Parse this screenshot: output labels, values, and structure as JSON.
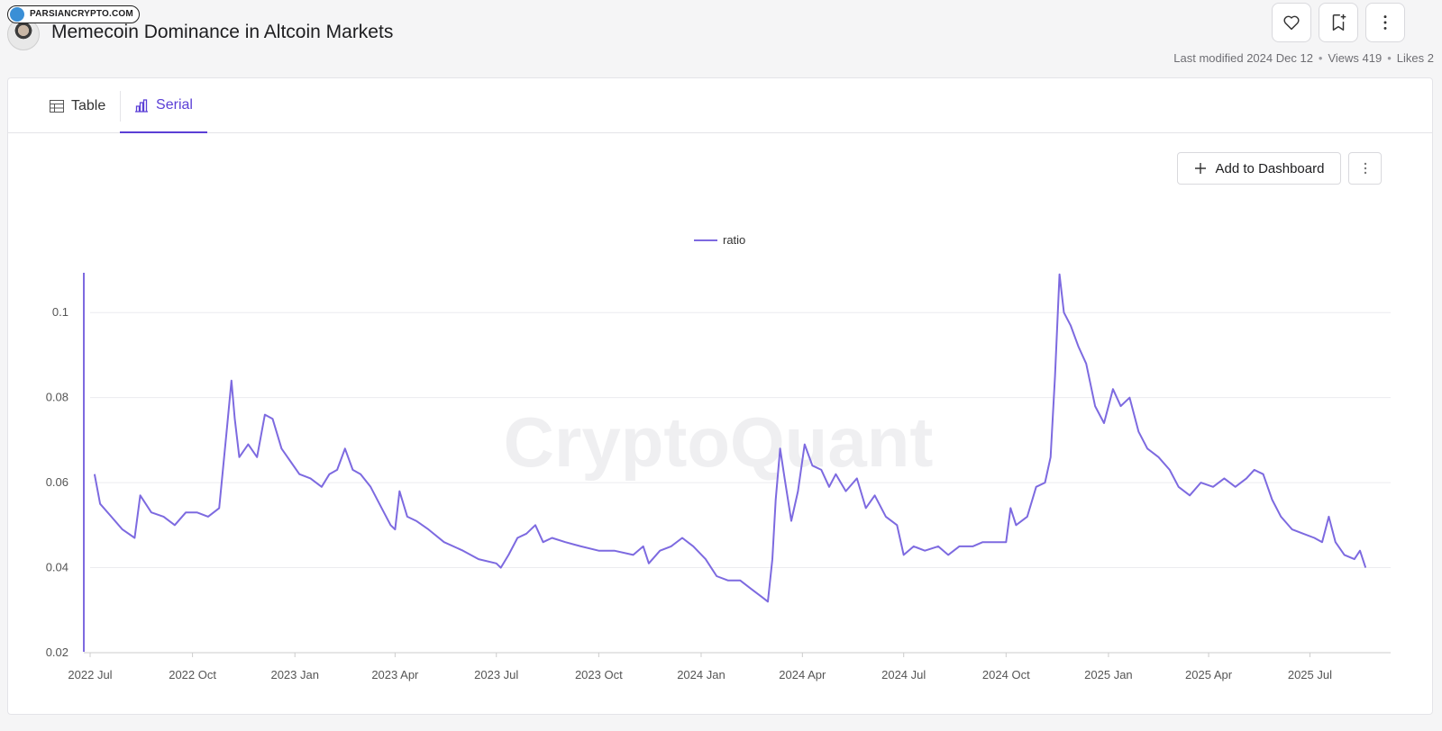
{
  "header": {
    "title": "Memecoin Dominance in Altcoin Markets",
    "badge": "PARSIANCRYPTO.COM",
    "meta": {
      "modified": "Last modified 2024 Dec 12",
      "views": "Views 419",
      "likes": "Likes 2"
    }
  },
  "tabs": [
    {
      "label": "Table",
      "icon": "table-icon"
    },
    {
      "label": "Serial",
      "icon": "bar-chart-icon"
    }
  ],
  "toolbar": {
    "add_dashboard": "Add to Dashboard"
  },
  "colors": {
    "accent": "#5b3fd6",
    "line": "#7d6ae0"
  },
  "chart_data": {
    "type": "line",
    "watermark": "CryptoQuant",
    "legend": "top-center",
    "grid": true,
    "ylim": [
      0.02,
      0.11
    ],
    "yticks": [
      "0.02",
      "0.04",
      "0.06",
      "0.08",
      "0.1"
    ],
    "xticks": [
      "2022 Jul",
      "2022 Oct",
      "2023 Jan",
      "2023 Apr",
      "2023 Jul",
      "2023 Oct",
      "2024 Jan",
      "2024 Apr",
      "2024 Jul",
      "2024 Oct",
      "2025 Jan",
      "2025 Apr",
      "2025 Jul"
    ],
    "series": [
      {
        "name": "ratio",
        "points": [
          [
            "2022-07-05",
            0.062
          ],
          [
            "2022-07-10",
            0.055
          ],
          [
            "2022-07-20",
            0.052
          ],
          [
            "2022-07-30",
            0.049
          ],
          [
            "2022-08-10",
            0.047
          ],
          [
            "2022-08-15",
            0.057
          ],
          [
            "2022-08-25",
            0.053
          ],
          [
            "2022-09-05",
            0.052
          ],
          [
            "2022-09-15",
            0.05
          ],
          [
            "2022-09-25",
            0.053
          ],
          [
            "2022-10-05",
            0.053
          ],
          [
            "2022-10-15",
            0.052
          ],
          [
            "2022-10-25",
            0.054
          ],
          [
            "2022-11-01",
            0.073
          ],
          [
            "2022-11-05",
            0.084
          ],
          [
            "2022-11-08",
            0.075
          ],
          [
            "2022-11-12",
            0.066
          ],
          [
            "2022-11-20",
            0.069
          ],
          [
            "2022-11-28",
            0.066
          ],
          [
            "2022-12-05",
            0.076
          ],
          [
            "2022-12-12",
            0.075
          ],
          [
            "2022-12-20",
            0.068
          ],
          [
            "2022-12-28",
            0.065
          ],
          [
            "2023-01-05",
            0.062
          ],
          [
            "2023-01-15",
            0.061
          ],
          [
            "2023-01-25",
            0.059
          ],
          [
            "2023-02-01",
            0.062
          ],
          [
            "2023-02-08",
            0.063
          ],
          [
            "2023-02-15",
            0.068
          ],
          [
            "2023-02-22",
            0.063
          ],
          [
            "2023-03-01",
            0.062
          ],
          [
            "2023-03-10",
            0.059
          ],
          [
            "2023-03-20",
            0.054
          ],
          [
            "2023-03-28",
            0.05
          ],
          [
            "2023-04-01",
            0.049
          ],
          [
            "2023-04-05",
            0.058
          ],
          [
            "2023-04-12",
            0.052
          ],
          [
            "2023-04-20",
            0.051
          ],
          [
            "2023-05-01",
            0.049
          ],
          [
            "2023-05-15",
            0.046
          ],
          [
            "2023-06-01",
            0.044
          ],
          [
            "2023-06-15",
            0.042
          ],
          [
            "2023-07-01",
            0.041
          ],
          [
            "2023-07-05",
            0.04
          ],
          [
            "2023-07-12",
            0.043
          ],
          [
            "2023-07-20",
            0.047
          ],
          [
            "2023-07-28",
            0.048
          ],
          [
            "2023-08-05",
            0.05
          ],
          [
            "2023-08-12",
            0.046
          ],
          [
            "2023-08-20",
            0.047
          ],
          [
            "2023-09-01",
            0.046
          ],
          [
            "2023-09-15",
            0.045
          ],
          [
            "2023-10-01",
            0.044
          ],
          [
            "2023-10-15",
            0.044
          ],
          [
            "2023-11-01",
            0.043
          ],
          [
            "2023-11-10",
            0.045
          ],
          [
            "2023-11-15",
            0.041
          ],
          [
            "2023-11-25",
            0.044
          ],
          [
            "2023-12-05",
            0.045
          ],
          [
            "2023-12-15",
            0.047
          ],
          [
            "2023-12-25",
            0.045
          ],
          [
            "2024-01-05",
            0.042
          ],
          [
            "2024-01-15",
            0.038
          ],
          [
            "2024-01-25",
            0.037
          ],
          [
            "2024-02-05",
            0.037
          ],
          [
            "2024-02-15",
            0.035
          ],
          [
            "2024-02-25",
            0.033
          ],
          [
            "2024-03-01",
            0.032
          ],
          [
            "2024-03-05",
            0.042
          ],
          [
            "2024-03-08",
            0.056
          ],
          [
            "2024-03-12",
            0.068
          ],
          [
            "2024-03-16",
            0.061
          ],
          [
            "2024-03-22",
            0.051
          ],
          [
            "2024-03-28",
            0.058
          ],
          [
            "2024-04-03",
            0.069
          ],
          [
            "2024-04-10",
            0.064
          ],
          [
            "2024-04-18",
            0.063
          ],
          [
            "2024-04-25",
            0.059
          ],
          [
            "2024-05-01",
            0.062
          ],
          [
            "2024-05-10",
            0.058
          ],
          [
            "2024-05-20",
            0.061
          ],
          [
            "2024-05-28",
            0.054
          ],
          [
            "2024-06-05",
            0.057
          ],
          [
            "2024-06-15",
            0.052
          ],
          [
            "2024-06-25",
            0.05
          ],
          [
            "2024-07-01",
            0.043
          ],
          [
            "2024-07-10",
            0.045
          ],
          [
            "2024-07-20",
            0.044
          ],
          [
            "2024-08-01",
            0.045
          ],
          [
            "2024-08-10",
            0.043
          ],
          [
            "2024-08-20",
            0.045
          ],
          [
            "2024-09-01",
            0.045
          ],
          [
            "2024-09-10",
            0.046
          ],
          [
            "2024-09-20",
            0.046
          ],
          [
            "2024-10-01",
            0.046
          ],
          [
            "2024-10-05",
            0.054
          ],
          [
            "2024-10-10",
            0.05
          ],
          [
            "2024-10-20",
            0.052
          ],
          [
            "2024-10-28",
            0.059
          ],
          [
            "2024-11-05",
            0.06
          ],
          [
            "2024-11-10",
            0.066
          ],
          [
            "2024-11-14",
            0.085
          ],
          [
            "2024-11-18",
            0.109
          ],
          [
            "2024-11-22",
            0.1
          ],
          [
            "2024-11-28",
            0.097
          ],
          [
            "2024-12-05",
            0.092
          ],
          [
            "2024-12-12",
            0.088
          ],
          [
            "2024-12-20",
            0.078
          ],
          [
            "2024-12-28",
            0.074
          ],
          [
            "2025-01-05",
            0.082
          ],
          [
            "2025-01-12",
            0.078
          ],
          [
            "2025-01-20",
            0.08
          ],
          [
            "2025-01-28",
            0.072
          ],
          [
            "2025-02-05",
            0.068
          ],
          [
            "2025-02-15",
            0.066
          ],
          [
            "2025-02-25",
            0.063
          ],
          [
            "2025-03-05",
            0.059
          ],
          [
            "2025-03-15",
            0.057
          ],
          [
            "2025-03-25",
            0.06
          ],
          [
            "2025-04-05",
            0.059
          ],
          [
            "2025-04-15",
            0.061
          ],
          [
            "2025-04-25",
            0.059
          ],
          [
            "2025-05-05",
            0.061
          ],
          [
            "2025-05-12",
            0.063
          ],
          [
            "2025-05-20",
            0.062
          ],
          [
            "2025-05-28",
            0.056
          ],
          [
            "2025-06-05",
            0.052
          ],
          [
            "2025-06-15",
            0.049
          ],
          [
            "2025-06-25",
            0.048
          ],
          [
            "2025-07-05",
            0.047
          ],
          [
            "2025-07-12",
            0.046
          ],
          [
            "2025-07-18",
            0.052
          ],
          [
            "2025-07-24",
            0.046
          ],
          [
            "2025-08-01",
            0.043
          ],
          [
            "2025-08-10",
            0.042
          ],
          [
            "2025-08-15",
            0.044
          ],
          [
            "2025-08-20",
            0.04
          ]
        ]
      }
    ]
  }
}
